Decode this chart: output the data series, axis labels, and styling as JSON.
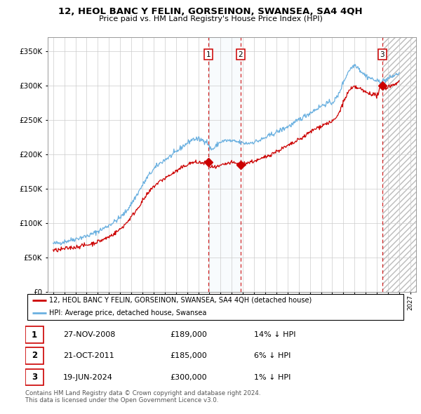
{
  "title": "12, HEOL BANC Y FELIN, GORSEINON, SWANSEA, SA4 4QH",
  "subtitle": "Price paid vs. HM Land Registry's House Price Index (HPI)",
  "legend_line1": "12, HEOL BANC Y FELIN, GORSEINON, SWANSEA, SA4 4QH (detached house)",
  "legend_line2": "HPI: Average price, detached house, Swansea",
  "footer1": "Contains HM Land Registry data © Crown copyright and database right 2024.",
  "footer2": "This data is licensed under the Open Government Licence v3.0.",
  "transactions": [
    {
      "num": 1,
      "date": "27-NOV-2008",
      "price": "£189,000",
      "pct": "14% ↓ HPI"
    },
    {
      "num": 2,
      "date": "21-OCT-2011",
      "price": "£185,000",
      "pct": "6% ↓ HPI"
    },
    {
      "num": 3,
      "date": "19-JUN-2024",
      "price": "£300,000",
      "pct": "1% ↓ HPI"
    }
  ],
  "sale_dates": [
    2008.91,
    2011.8,
    2024.47
  ],
  "sale_prices": [
    189000,
    185000,
    300000
  ],
  "hpi_color": "#6ab0e0",
  "price_color": "#cc0000",
  "marker_color": "#cc0000",
  "dashed_color": "#cc0000",
  "shade_color": "#daeaf5",
  "hatch_color": "#cccccc",
  "ylim": [
    0,
    370000
  ],
  "yticks": [
    0,
    50000,
    100000,
    150000,
    200000,
    250000,
    300000,
    350000
  ],
  "xlim": [
    1994.5,
    2027.5
  ],
  "xticks": [
    1995,
    1996,
    1997,
    1998,
    1999,
    2000,
    2001,
    2002,
    2003,
    2004,
    2005,
    2006,
    2007,
    2008,
    2009,
    2010,
    2011,
    2012,
    2013,
    2014,
    2015,
    2016,
    2017,
    2018,
    2019,
    2020,
    2021,
    2022,
    2023,
    2024,
    2025,
    2026,
    2027
  ]
}
